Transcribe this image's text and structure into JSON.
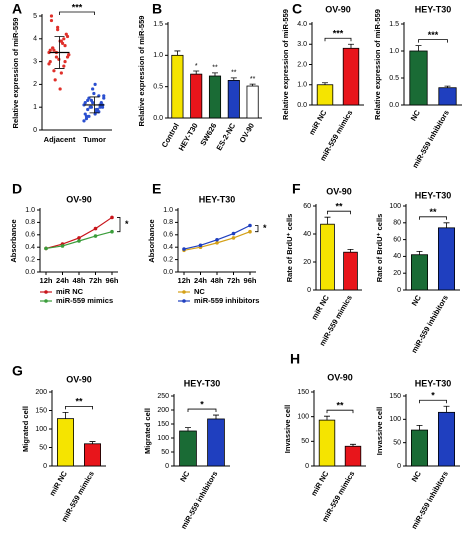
{
  "panel_labels": [
    "A",
    "B",
    "C",
    "D",
    "E",
    "F",
    "G",
    "H"
  ],
  "chart_data": [
    {
      "type": "scatter",
      "ylabel": "Relative expression of miR-559",
      "categories": [
        "Adjacent",
        "Tumor"
      ],
      "colors": [
        "#e0302a",
        "#2a4fd0"
      ],
      "points": [
        [
          3.4,
          3.6,
          3.2,
          3.9,
          2.8,
          4.1,
          3.0,
          3.5,
          4.5,
          2.5,
          3.7,
          3.3,
          4.8,
          2.2,
          3.1,
          3.8,
          4.2,
          2.9,
          3.6,
          3.4,
          1.8,
          4.0,
          3.2,
          3.5,
          2.6,
          4.4,
          3.9,
          3.0,
          3.3,
          5.0
        ],
        [
          1.1,
          0.9,
          1.3,
          0.7,
          1.5,
          1.0,
          1.2,
          0.6,
          1.8,
          0.8,
          1.1,
          1.4,
          0.5,
          1.0,
          1.6,
          0.9,
          1.2,
          0.4,
          1.3,
          1.0,
          2.0,
          0.8,
          1.1,
          0.7,
          1.4,
          1.2,
          0.9,
          1.0,
          1.5,
          0.6
        ]
      ],
      "means": [
        3.4,
        1.1
      ],
      "sds": [
        0.7,
        0.35
      ],
      "annotation": "***",
      "ylim": [
        0,
        5
      ],
      "yticks": [
        0,
        1,
        2,
        3,
        4,
        5
      ]
    },
    {
      "type": "bar",
      "ylabel": "Relative expression of miR-559",
      "categories": [
        "Control",
        "HEY-T30",
        "SW626",
        "ES-2-NC",
        "OV-90"
      ],
      "values": [
        1.0,
        0.7,
        0.67,
        0.6,
        0.51
      ],
      "errors": [
        0.07,
        0.05,
        0.05,
        0.04,
        0.03
      ],
      "colors": [
        "#f5e400",
        "#e8151b",
        "#1a6b35",
        "#1f3fbf",
        "#ffffff"
      ],
      "bar_annotations": [
        null,
        "*",
        "**",
        "**",
        "**"
      ],
      "ylim": [
        0,
        1.5
      ],
      "yticks": [
        {
          "value": 0,
          "label": "0.0"
        },
        {
          "value": 0.5,
          "label": "0.5"
        },
        {
          "value": 1,
          "label": "1.0"
        },
        {
          "value": 1.5,
          "label": "1.5"
        }
      ]
    },
    {
      "type": "bar",
      "title": "OV-90",
      "ylabel": "Relative expression of miR-559",
      "categories": [
        "miR NC",
        "miR-559 mimics"
      ],
      "values": [
        1.0,
        2.8
      ],
      "errors": [
        0.1,
        0.2
      ],
      "colors": [
        "#f5e400",
        "#e8151b"
      ],
      "annotation": "***",
      "ylim": [
        0,
        4
      ],
      "yticks": [
        {
          "value": 0,
          "label": "0.0"
        },
        {
          "value": 1,
          "label": "1.0"
        },
        {
          "value": 2,
          "label": "2.0"
        },
        {
          "value": 3,
          "label": "3.0"
        },
        {
          "value": 4,
          "label": "4.0"
        }
      ]
    },
    {
      "type": "bar",
      "title": "HEY-T30",
      "ylabel": "Relative expression of miR-559",
      "categories": [
        "NC",
        "miR-559 inhibitors"
      ],
      "values": [
        1.0,
        0.32
      ],
      "errors": [
        0.1,
        0.03
      ],
      "colors": [
        "#1a6b35",
        "#1f3fbf"
      ],
      "annotation": "***",
      "ylim": [
        0,
        1.5
      ],
      "yticks": [
        {
          "value": 0,
          "label": "0.0"
        },
        {
          "value": 0.5,
          "label": "0.5"
        },
        {
          "value": 1,
          "label": "1.0"
        },
        {
          "value": 1.5,
          "label": "1.5"
        }
      ]
    },
    {
      "type": "line",
      "title": "OV-90",
      "ylabel": "Absorbance",
      "categories": [
        "12h",
        "24h",
        "48h",
        "72h",
        "96h"
      ],
      "series": [
        {
          "name": "miR NC",
          "color": "#c8151b",
          "values": [
            0.38,
            0.45,
            0.55,
            0.7,
            0.88
          ]
        },
        {
          "name": "miR-559 mimics",
          "color": "#3a9d3a",
          "values": [
            0.38,
            0.42,
            0.5,
            0.58,
            0.65
          ]
        }
      ],
      "annotation": "*",
      "legend": "bottom",
      "ylim": [
        0,
        1
      ],
      "yticks": [
        {
          "value": 0,
          "label": "0.0"
        },
        {
          "value": 0.2,
          "label": "0.2"
        },
        {
          "value": 0.4,
          "label": "0.4"
        },
        {
          "value": 0.6,
          "label": "0.6"
        },
        {
          "value": 0.8,
          "label": "0.8"
        },
        {
          "value": 1,
          "label": "1.0"
        }
      ]
    },
    {
      "type": "line",
      "title": "HEY-T30",
      "ylabel": "Absorbance",
      "categories": [
        "12h",
        "24h",
        "48h",
        "72h",
        "96h"
      ],
      "series": [
        {
          "name": "NC",
          "color": "#d4a017",
          "values": [
            0.35,
            0.4,
            0.47,
            0.55,
            0.65
          ]
        },
        {
          "name": "miR-559 inhibitors",
          "color": "#1f3fbf",
          "values": [
            0.37,
            0.43,
            0.52,
            0.62,
            0.75
          ]
        }
      ],
      "annotation": "*",
      "legend": "bottom",
      "ylim": [
        0,
        1
      ],
      "yticks": [
        {
          "value": 0,
          "label": "0.0"
        },
        {
          "value": 0.2,
          "label": "0.2"
        },
        {
          "value": 0.4,
          "label": "0.4"
        },
        {
          "value": 0.6,
          "label": "0.6"
        },
        {
          "value": 0.8,
          "label": "0.8"
        },
        {
          "value": 1,
          "label": "1.0"
        }
      ]
    },
    {
      "type": "bar",
      "title": "OV-90",
      "ylabel": "Rate of BrdU⁺ cells",
      "categories": [
        "miR NC",
        "miR-559 mimics"
      ],
      "values": [
        47,
        27
      ],
      "errors": [
        5,
        2
      ],
      "colors": [
        "#f5e400",
        "#e8151b"
      ],
      "annotation": "**",
      "ylim": [
        0,
        60
      ],
      "yticks": [
        0,
        20,
        40,
        60
      ]
    },
    {
      "type": "bar",
      "title": "HEY-T30",
      "ylabel": "Rate of BrdU⁺ cells",
      "categories": [
        "NC",
        "miR-559 inhibitors"
      ],
      "values": [
        42,
        74
      ],
      "errors": [
        4,
        6
      ],
      "colors": [
        "#1a6b35",
        "#1f3fbf"
      ],
      "annotation": "**",
      "ylim": [
        0,
        100
      ],
      "yticks": [
        0,
        20,
        40,
        60,
        80,
        100
      ]
    },
    {
      "type": "bar",
      "title": "OV-90",
      "ylabel": "Migrated cell",
      "categories": [
        "miR NC",
        "miR-559 mimics"
      ],
      "values": [
        128,
        60
      ],
      "errors": [
        17,
        6
      ],
      "colors": [
        "#f5e400",
        "#e8151b"
      ],
      "annotation": "**",
      "ylim": [
        0,
        200
      ],
      "yticks": [
        0,
        50,
        100,
        150,
        200
      ]
    },
    {
      "type": "bar",
      "title": "HEY-T30",
      "ylabel": "Migrated cell",
      "categories": [
        "NC",
        "miR-559 inhibitors"
      ],
      "values": [
        125,
        168
      ],
      "errors": [
        12,
        14
      ],
      "colors": [
        "#1a6b35",
        "#1f3fbf"
      ],
      "annotation": "*",
      "ylim": [
        0,
        250
      ],
      "yticks": [
        0,
        50,
        100,
        150,
        200,
        250
      ]
    },
    {
      "type": "bar",
      "title": "OV-90",
      "ylabel": "Invassive cell",
      "categories": [
        "miR NC",
        "miR-559 mimics"
      ],
      "values": [
        93,
        40
      ],
      "errors": [
        8,
        4
      ],
      "colors": [
        "#f5e400",
        "#e8151b"
      ],
      "annotation": "**",
      "ylim": [
        0,
        150
      ],
      "yticks": [
        0,
        50,
        100,
        150
      ]
    },
    {
      "type": "bar",
      "title": "HEY-T30",
      "ylabel": "Invassive cell",
      "categories": [
        "NC",
        "miR-559 inhibitors"
      ],
      "values": [
        77,
        115
      ],
      "errors": [
        10,
        13
      ],
      "colors": [
        "#1a6b35",
        "#1f3fbf"
      ],
      "annotation": "*",
      "ylim": [
        0,
        150
      ],
      "yticks": [
        0,
        50,
        100,
        150
      ]
    }
  ]
}
